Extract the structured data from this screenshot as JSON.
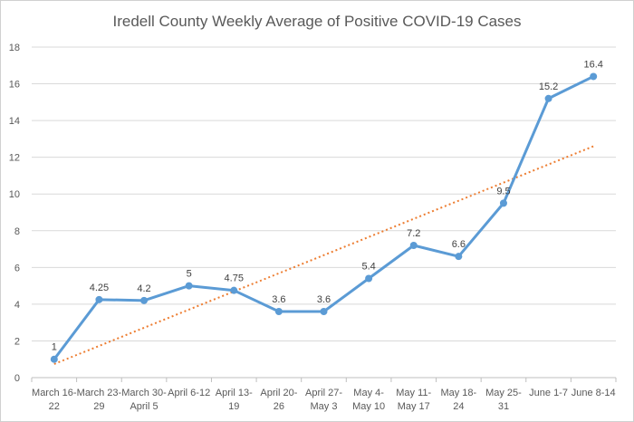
{
  "chart_data": {
    "type": "line",
    "title": "Iredell County Weekly Average of Positive COVID-19 Cases",
    "xlabel": "",
    "ylabel": "",
    "categories": [
      [
        "March 16-",
        "22"
      ],
      [
        "March 23-",
        "29"
      ],
      [
        "March 30-",
        "April 5"
      ],
      [
        "April 6-12",
        ""
      ],
      [
        "April 13-",
        "19"
      ],
      [
        "April 20-",
        "26"
      ],
      [
        "April 27-",
        "May 3"
      ],
      [
        "May 4-",
        "May 10"
      ],
      [
        "May 11-",
        "May 17"
      ],
      [
        "May 18-",
        "24"
      ],
      [
        "May 25-",
        "31"
      ],
      [
        "June 1-7",
        ""
      ],
      [
        "June 8-14",
        ""
      ]
    ],
    "series": [
      {
        "values": [
          1,
          4.25,
          4.2,
          5,
          4.75,
          3.6,
          3.6,
          5.4,
          7.2,
          6.6,
          9.5,
          15.2,
          16.4
        ],
        "data_labels": [
          "1",
          "4.25",
          "4.2",
          "5",
          "4.75",
          "3.6",
          "3.6",
          "5.4",
          "7.2",
          "6.6",
          "9.5",
          "15.2",
          "16.4"
        ],
        "color": "#5b9bd5"
      }
    ],
    "trendline": {
      "type": "linear",
      "color": "#ed7d31",
      "style": "dotted"
    },
    "ylim": [
      0,
      18
    ],
    "yticks": [
      0,
      2,
      4,
      6,
      8,
      10,
      12,
      14,
      16,
      18
    ],
    "grid": true,
    "legend": "none"
  }
}
